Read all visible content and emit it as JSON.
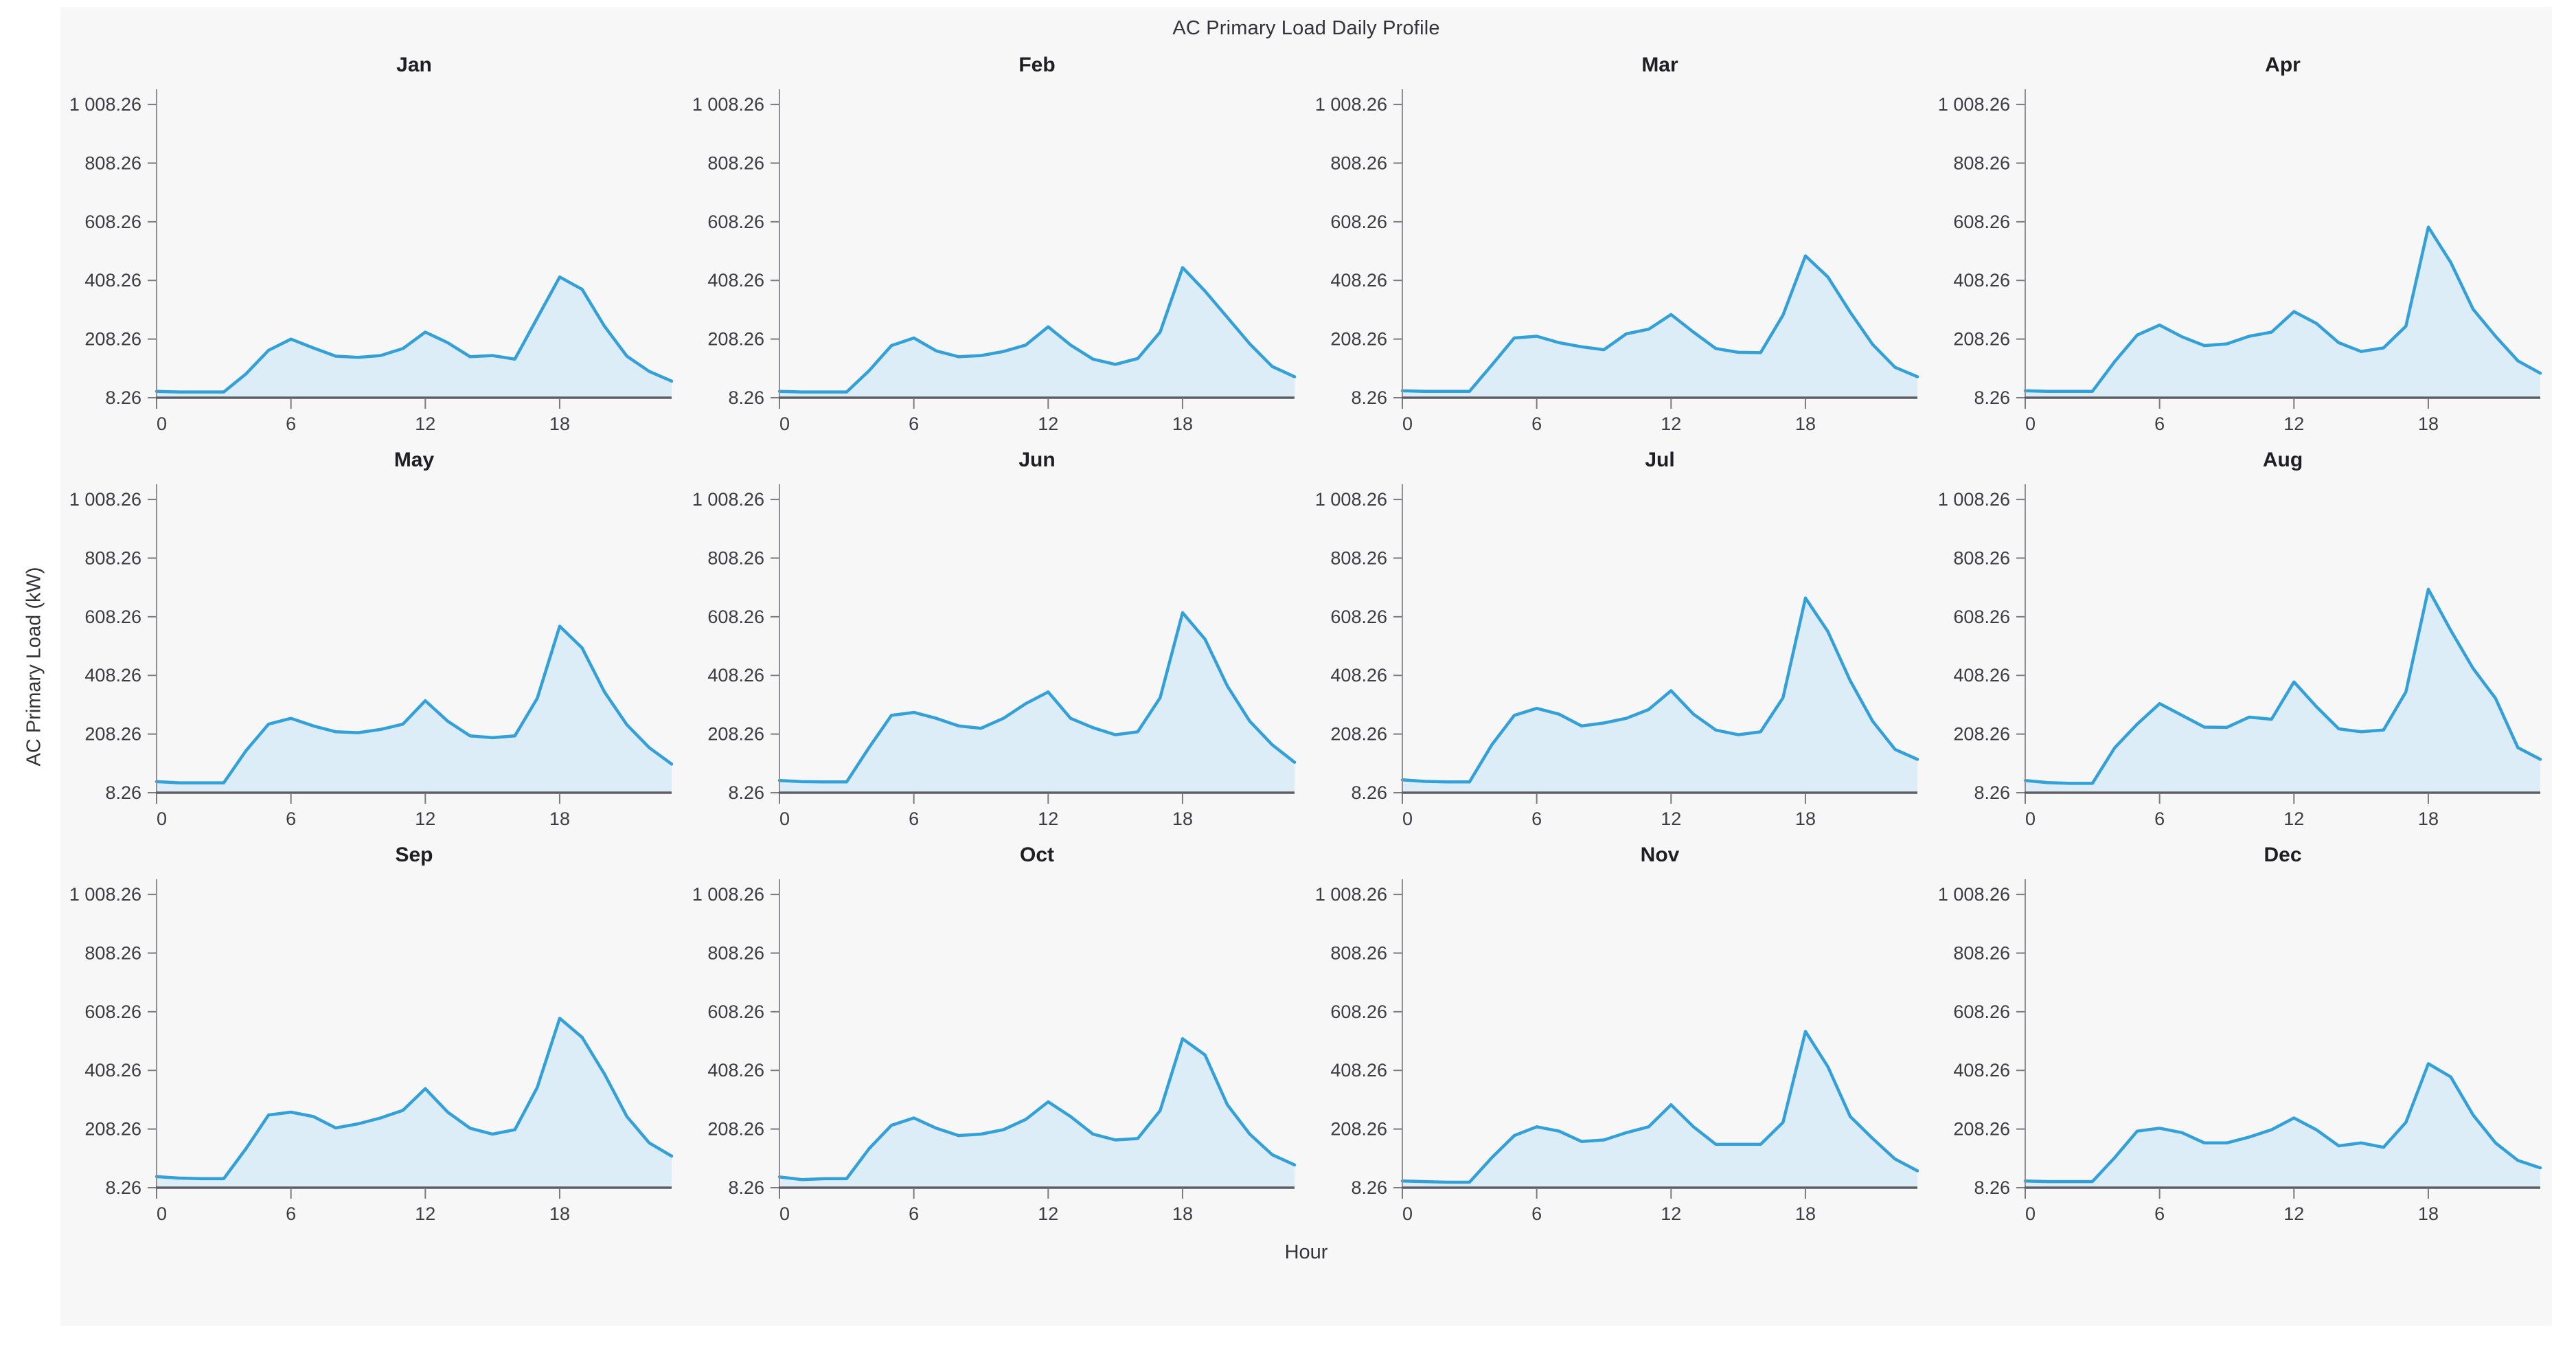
{
  "figure": {
    "title": "AC Primary Load Daily Profile",
    "xlabel": "Hour",
    "ylabel": "AC Primary Load (kW)"
  },
  "chart_data": {
    "type": "area",
    "layout": "small-multiples 3 rows x 4 columns, one subplot per month",
    "title": "AC Primary Load Daily Profile",
    "xlabel": "Hour",
    "ylabel": "AC Primary Load (kW)",
    "x": [
      0,
      1,
      2,
      3,
      4,
      5,
      6,
      7,
      8,
      9,
      10,
      11,
      12,
      13,
      14,
      15,
      16,
      17,
      18,
      19,
      20,
      21,
      22,
      23
    ],
    "x_ticks": [
      0,
      6,
      12,
      18
    ],
    "x_tick_labels": [
      "0",
      "6",
      "12",
      "18"
    ],
    "y_ticks": [
      8.26,
      208.26,
      408.26,
      608.26,
      808.26,
      1008.26
    ],
    "y_tick_labels": [
      "8.26",
      "208.26",
      "408.26",
      "608.26",
      "808.26",
      "1 008.26"
    ],
    "ylim": [
      8.26,
      1060
    ],
    "xlim": [
      0,
      23
    ],
    "grid": "off",
    "legend": "none",
    "line_color": "#33a0d8",
    "fill_color": "#dcedf7",
    "series": [
      {
        "name": "Jan",
        "values": [
          30,
          28,
          28,
          28,
          90,
          170,
          208,
          178,
          150,
          146,
          152,
          176,
          232,
          196,
          148,
          152,
          140,
          280,
          420,
          378,
          252,
          150,
          98,
          65
        ]
      },
      {
        "name": "Feb",
        "values": [
          30,
          28,
          28,
          28,
          100,
          186,
          212,
          168,
          148,
          152,
          166,
          188,
          250,
          188,
          140,
          122,
          142,
          232,
          452,
          372,
          282,
          192,
          115,
          80
        ]
      },
      {
        "name": "Mar",
        "values": [
          32,
          30,
          30,
          30,
          120,
          212,
          218,
          196,
          182,
          172,
          226,
          242,
          292,
          232,
          176,
          163,
          162,
          290,
          492,
          420,
          300,
          190,
          112,
          80
        ]
      },
      {
        "name": "Apr",
        "values": [
          32,
          30,
          30,
          30,
          132,
          222,
          256,
          216,
          186,
          192,
          218,
          232,
          302,
          262,
          196,
          166,
          178,
          252,
          590,
          470,
          310,
          218,
          134,
          92
        ]
      },
      {
        "name": "May",
        "values": [
          46,
          42,
          42,
          42,
          152,
          242,
          262,
          236,
          216,
          213,
          224,
          242,
          322,
          252,
          202,
          196,
          202,
          330,
          576,
          502,
          352,
          240,
          162,
          106
        ]
      },
      {
        "name": "Jun",
        "values": [
          50,
          46,
          45,
          45,
          162,
          272,
          282,
          262,
          236,
          228,
          262,
          312,
          352,
          262,
          230,
          206,
          216,
          332,
          622,
          532,
          372,
          252,
          172,
          112
        ]
      },
      {
        "name": "Jul",
        "values": [
          52,
          47,
          45,
          45,
          172,
          272,
          296,
          276,
          236,
          246,
          262,
          292,
          356,
          276,
          222,
          206,
          216,
          332,
          672,
          558,
          390,
          252,
          156,
          122
        ]
      },
      {
        "name": "Aug",
        "values": [
          50,
          43,
          40,
          40,
          162,
          242,
          312,
          272,
          232,
          231,
          266,
          259,
          386,
          302,
          226,
          216,
          222,
          352,
          702,
          562,
          432,
          330,
          162,
          122
        ]
      },
      {
        "name": "Sep",
        "values": [
          46,
          41,
          39,
          39,
          142,
          256,
          266,
          251,
          212,
          226,
          246,
          272,
          346,
          266,
          211,
          191,
          206,
          350,
          586,
          521,
          396,
          251,
          161,
          116
        ]
      },
      {
        "name": "Oct",
        "values": [
          45,
          36,
          39,
          39,
          141,
          221,
          246,
          211,
          186,
          191,
          206,
          241,
          301,
          251,
          191,
          171,
          176,
          271,
          516,
          461,
          291,
          191,
          121,
          86
        ]
      },
      {
        "name": "Nov",
        "values": [
          31,
          29,
          27,
          27,
          111,
          186,
          216,
          201,
          166,
          171,
          196,
          216,
          291,
          216,
          156,
          156,
          156,
          231,
          541,
          421,
          251,
          176,
          106,
          66
        ]
      },
      {
        "name": "Dec",
        "values": [
          31,
          29,
          29,
          29,
          111,
          201,
          211,
          196,
          161,
          161,
          181,
          206,
          246,
          206,
          151,
          161,
          146,
          231,
          431,
          386,
          256,
          161,
          101,
          76
        ]
      }
    ]
  }
}
